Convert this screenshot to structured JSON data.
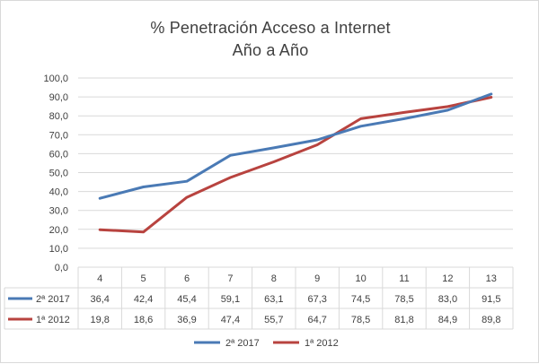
{
  "chart_data": {
    "type": "line",
    "title": "% Penetración  Acceso a Internet",
    "subtitle": "Año a Año",
    "x": [
      "4",
      "5",
      "6",
      "7",
      "8",
      "9",
      "10",
      "11",
      "12",
      "13"
    ],
    "ylim": [
      0,
      100
    ],
    "yticks": [
      "0,0",
      "10,0",
      "20,0",
      "30,0",
      "40,0",
      "50,0",
      "60,0",
      "70,0",
      "80,0",
      "90,0",
      "100,0"
    ],
    "grid": true,
    "legend_position": "bottom",
    "data_table": true,
    "series": [
      {
        "name": "2ª 2017",
        "color": "#4a7ab5",
        "values": [
          36.4,
          42.4,
          45.4,
          59.1,
          63.1,
          67.3,
          74.5,
          78.5,
          83.0,
          91.5
        ],
        "labels": [
          "36,4",
          "42,4",
          "45,4",
          "59,1",
          "63,1",
          "67,3",
          "74,5",
          "78,5",
          "83,0",
          "91,5"
        ]
      },
      {
        "name": "1ª 2012",
        "color": "#b8433f",
        "values": [
          19.8,
          18.6,
          36.9,
          47.4,
          55.7,
          64.7,
          78.5,
          81.8,
          84.9,
          89.8
        ],
        "labels": [
          "19,8",
          "18,6",
          "36,9",
          "47,4",
          "55,7",
          "64,7",
          "78,5",
          "81,8",
          "84,9",
          "89,8"
        ]
      }
    ]
  }
}
